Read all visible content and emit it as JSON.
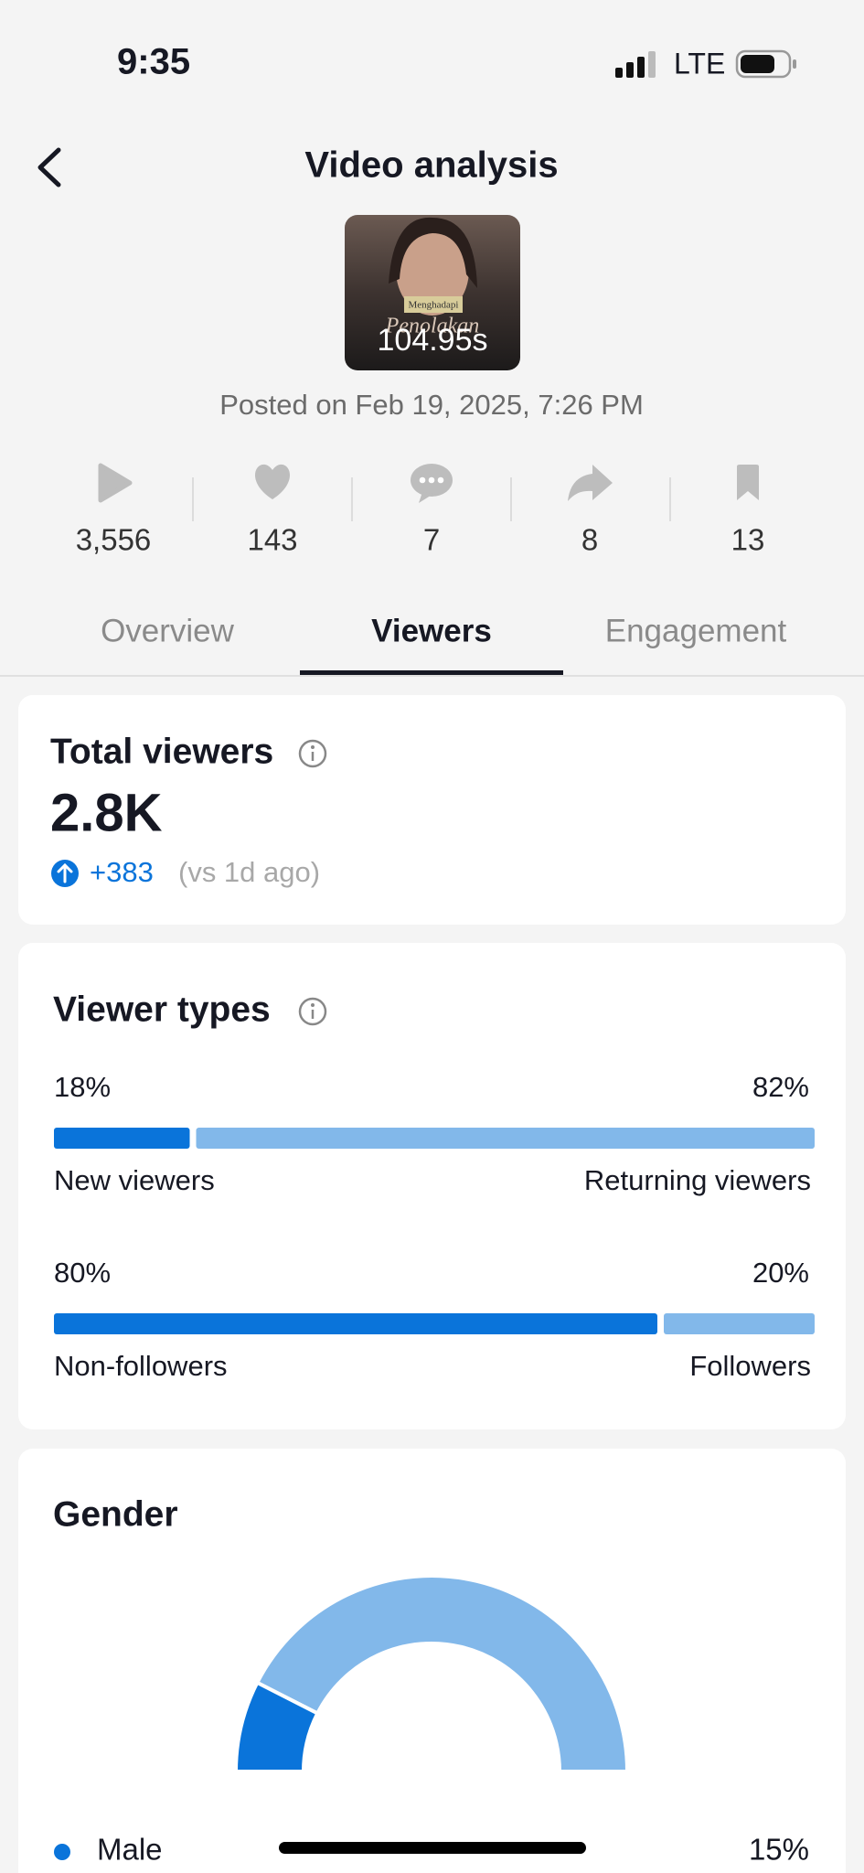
{
  "status": {
    "time": "9:35",
    "network": "LTE"
  },
  "header": {
    "title": "Video analysis"
  },
  "video": {
    "overlay_texts": [
      "Menghadapi",
      "Penolakan"
    ],
    "duration": "104.95s",
    "posted": "Posted on Feb 19, 2025, 7:26 PM"
  },
  "stats": [
    "3,556",
    "143",
    "7",
    "8",
    "13"
  ],
  "tabs": {
    "items": [
      "Overview",
      "Viewers",
      "Engagement"
    ],
    "active": 1
  },
  "total_viewers": {
    "title": "Total viewers",
    "value": "2.8K",
    "change": "+383",
    "comparison": "(vs 1d ago)"
  },
  "viewer_types": {
    "title": "Viewer types",
    "colors": [
      "#0a74da",
      "#82b8ea"
    ],
    "rows": [
      {
        "left": {
          "label": "New viewers",
          "value": 18,
          "value_label": "18%"
        },
        "right": {
          "label": "Returning viewers",
          "value": 82,
          "value_label": "82%"
        }
      },
      {
        "left": {
          "label": "Non-followers",
          "value": 80,
          "value_label": "80%"
        },
        "right": {
          "label": "Followers",
          "value": 20,
          "value_label": "20%"
        }
      }
    ]
  },
  "gender": {
    "title": "Gender",
    "track_color": "#82b8ea",
    "segments": [
      {
        "name": "Male",
        "value": 15,
        "value_label": "15%",
        "color": "#0a74da"
      }
    ]
  }
}
